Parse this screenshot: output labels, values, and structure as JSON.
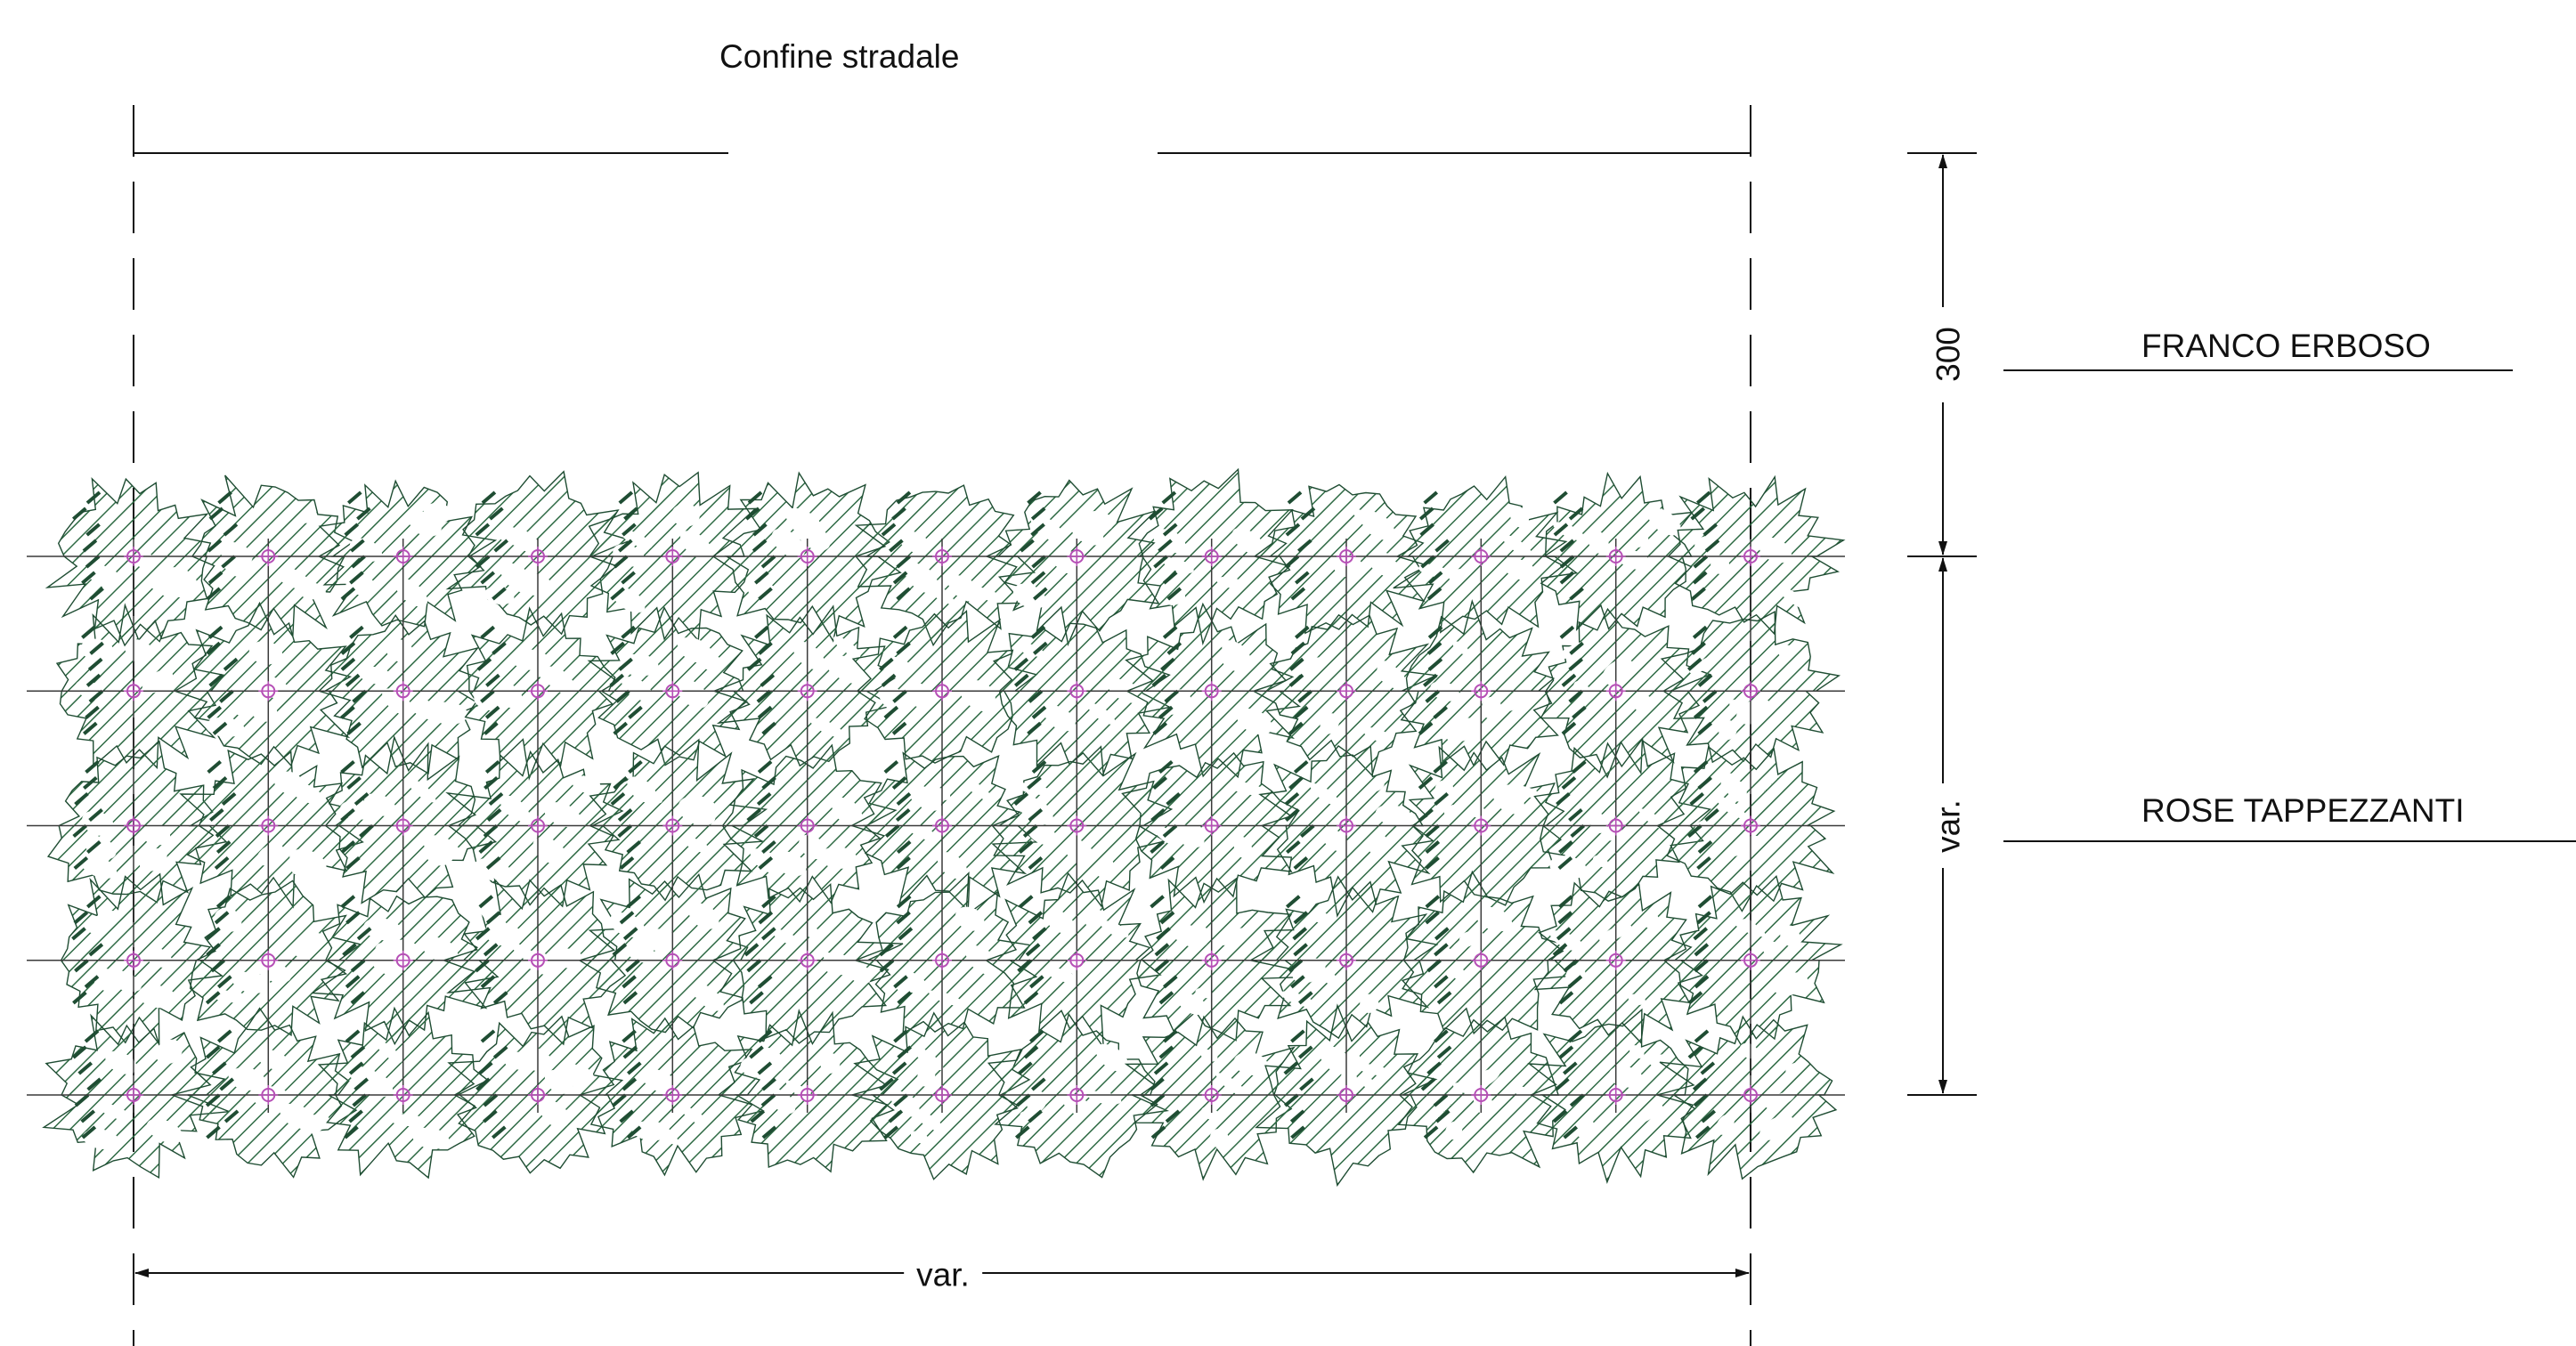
{
  "labels": {
    "road_boundary": "Confine stradale",
    "grass_strip": "FRANCO ERBOSO",
    "ground_roses": "ROSE TAPPEZZANTI"
  },
  "dimensions": {
    "grass_depth": "300",
    "planting_depth": "var.",
    "planting_width": "var."
  },
  "planting": {
    "columns": 13,
    "rows": 5
  },
  "colors": {
    "line": "#111111",
    "foliage": "#2f6b45",
    "foliage_dark": "#1f4d33",
    "plant_marker": "#b64fb6"
  }
}
